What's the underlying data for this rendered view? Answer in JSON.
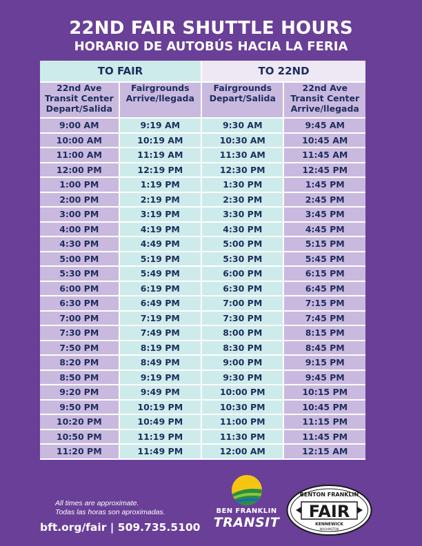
{
  "title": "22ND FAIR SHUTTLE HOURS",
  "subtitle": "HORARIO DE AUTOBÚS HACIA LA FERIA",
  "groups": {
    "to_fair": "TO FAIR",
    "to_22nd": "TO 22ND"
  },
  "headers": [
    "22nd Ave\nTransit Center\nDepart/Salida",
    "Fairgrounds\nArrive/llegada",
    "Fairgrounds\nDepart/Salida",
    "22nd Ave\nTransit Center\nArrive/llegada"
  ],
  "rows": [
    [
      "9:00 AM",
      "9:19 AM",
      "9:30 AM",
      "9:45 AM"
    ],
    [
      "10:00 AM",
      "10:19 AM",
      "10:30 AM",
      "10:45 AM"
    ],
    [
      "11:00 AM",
      "11:19 AM",
      "11:30 AM",
      "11:45 AM"
    ],
    [
      "12:00 PM",
      "12:19 PM",
      "12:30 PM",
      "12:45 PM"
    ],
    [
      "1:00 PM",
      "1:19 PM",
      "1:30 PM",
      "1:45 PM"
    ],
    [
      "2:00 PM",
      "2:19 PM",
      "2:30 PM",
      "2:45 PM"
    ],
    [
      "3:00 PM",
      "3:19 PM",
      "3:30 PM",
      "3:45 PM"
    ],
    [
      "4:00 PM",
      "4:19 PM",
      "4:30 PM",
      "4:45 PM"
    ],
    [
      "4:30 PM",
      "4:49 PM",
      "5:00 PM",
      "5:15 PM"
    ],
    [
      "5:00 PM",
      "5:19 PM",
      "5:30 PM",
      "5:45 PM"
    ],
    [
      "5:30 PM",
      "5:49 PM",
      "6:00 PM",
      "6:15 PM"
    ],
    [
      "6:00 PM",
      "6:19 PM",
      "6:30 PM",
      "6:45 PM"
    ],
    [
      "6:30 PM",
      "6:49 PM",
      "7:00 PM",
      "7:15 PM"
    ],
    [
      "7:00 PM",
      "7:19 PM",
      "7:30 PM",
      "7:45 PM"
    ],
    [
      "7:30 PM",
      "7:49 PM",
      "8:00 PM",
      "8:15 PM"
    ],
    [
      "7:50 PM",
      "8:19 PM",
      "8:30 PM",
      "8:45 PM"
    ],
    [
      "8:20 PM",
      "8:49 PM",
      "9:00 PM",
      "9:15 PM"
    ],
    [
      "8:50 PM",
      "9:19 PM",
      "9:30 PM",
      "9:45 PM"
    ],
    [
      "9:20 PM",
      "9:49 PM",
      "10:00 PM",
      "10:15 PM"
    ],
    [
      "9:50 PM",
      "10:19 PM",
      "10:30 PM",
      "10:45 PM"
    ],
    [
      "10:20 PM",
      "10:49 PM",
      "11:00 PM",
      "11:15 PM"
    ],
    [
      "10:50 PM",
      "11:19 PM",
      "11:30 PM",
      "11:45 PM"
    ],
    [
      "11:20 PM",
      "11:49 PM",
      "12:00 AM",
      "12:15 AM"
    ]
  ],
  "note_en": "All times are approximate.",
  "note_es": "Todas las horas son aproximadas.",
  "contact": "bft.org/fair | 509.735.5100",
  "bft_logo": {
    "name": "BEN FRANKLIN",
    "transit": "TRANSIT",
    "icon": "ben-franklin-transit-logo"
  },
  "fair_logo": {
    "top": "BENTON FRANKLIN",
    "main": "FAIR",
    "city": "KENNEWICK",
    "state": "WASHINGTON"
  },
  "colors": {
    "background": "#6a3f97",
    "teal_cell": "#cdebea",
    "lavender_cell": "#c9b9df",
    "text": "#1d2d5c"
  }
}
